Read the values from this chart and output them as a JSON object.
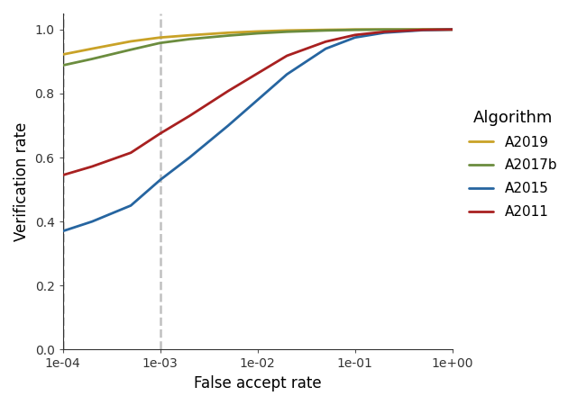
{
  "title": "",
  "xlabel": "False accept rate",
  "ylabel": "Verification rate",
  "xlim": [
    0.0001,
    1.0
  ],
  "ylim": [
    0.0,
    1.05
  ],
  "vlines": [
    0.0001,
    0.001
  ],
  "background_color": "#ffffff",
  "algorithms": [
    "A2019",
    "A2017b",
    "A2015",
    "A2011"
  ],
  "colors": {
    "A2019": "#C9A227",
    "A2017b": "#6B8C3E",
    "A2015": "#2665A0",
    "A2011": "#A82020"
  },
  "curves": {
    "A2019": {
      "x": [
        0.0001,
        0.0002,
        0.0005,
        0.001,
        0.002,
        0.005,
        0.01,
        0.02,
        0.05,
        0.1,
        0.2,
        0.5,
        1.0
      ],
      "y": [
        0.922,
        0.94,
        0.963,
        0.975,
        0.982,
        0.99,
        0.994,
        0.997,
        0.999,
        1.0,
        1.0,
        1.0,
        1.0
      ]
    },
    "A2017b": {
      "x": [
        0.0001,
        0.0002,
        0.0005,
        0.001,
        0.002,
        0.005,
        0.01,
        0.02,
        0.05,
        0.1,
        0.2,
        0.5,
        1.0
      ],
      "y": [
        0.888,
        0.908,
        0.937,
        0.958,
        0.97,
        0.981,
        0.988,
        0.993,
        0.997,
        0.999,
        1.0,
        1.0,
        1.0
      ]
    },
    "A2015": {
      "x": [
        0.0001,
        0.0002,
        0.0005,
        0.001,
        0.002,
        0.005,
        0.01,
        0.02,
        0.05,
        0.1,
        0.2,
        0.5,
        1.0
      ],
      "y": [
        0.37,
        0.4,
        0.45,
        0.53,
        0.6,
        0.7,
        0.78,
        0.86,
        0.94,
        0.975,
        0.99,
        0.998,
        1.0
      ]
    },
    "A2011": {
      "x": [
        0.0001,
        0.0002,
        0.0005,
        0.001,
        0.002,
        0.005,
        0.01,
        0.02,
        0.05,
        0.1,
        0.2,
        0.5,
        1.0
      ],
      "y": [
        0.545,
        0.572,
        0.615,
        0.675,
        0.73,
        0.808,
        0.863,
        0.918,
        0.962,
        0.983,
        0.993,
        0.999,
        1.0
      ]
    }
  },
  "legend_title": "Algorithm",
  "linewidth": 2.0,
  "yticks": [
    0.0,
    0.2,
    0.4,
    0.6,
    0.8,
    1.0
  ],
  "xticks": [
    0.0001,
    0.001,
    0.01,
    0.1,
    1.0
  ],
  "xtick_labels": [
    "1e-04",
    "1e-03",
    "1e-02",
    "1e-01",
    "1e+00"
  ]
}
